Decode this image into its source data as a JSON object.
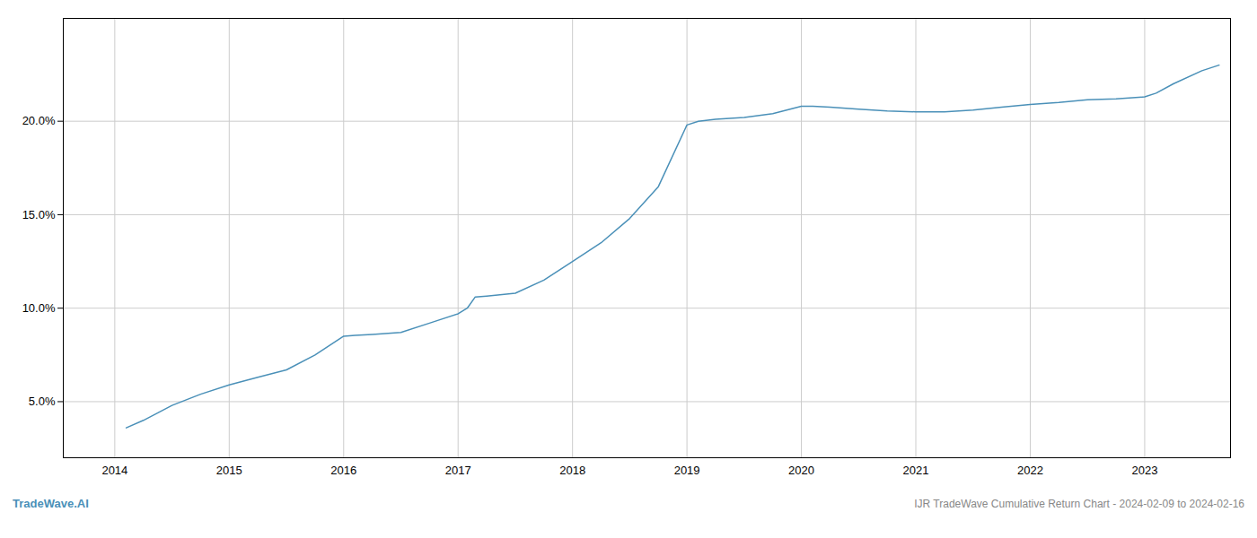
{
  "chart_data": {
    "type": "line",
    "title": "IJR TradeWave Cumulative Return Chart - 2024-02-09 to 2024-02-16",
    "annotations": [
      "TradeWave.AI"
    ],
    "color": "#4a90b8",
    "grid": true,
    "xlim": [
      2013.55,
      2023.75
    ],
    "xticks": [
      2014,
      2015,
      2016,
      2017,
      2018,
      2019,
      2020,
      2021,
      2022,
      2023
    ],
    "ylim": [
      2.0,
      25.5
    ],
    "yticks": [
      {
        "value": 5.0,
        "label": "5.0%"
      },
      {
        "value": 10.0,
        "label": "10.0%"
      },
      {
        "value": 15.0,
        "label": "15.0%"
      },
      {
        "value": 20.0,
        "label": "20.0%"
      }
    ],
    "x": [
      2014.1,
      2014.25,
      2014.5,
      2014.75,
      2015.0,
      2015.25,
      2015.5,
      2015.75,
      2016.0,
      2016.1,
      2016.25,
      2016.5,
      2016.75,
      2017.0,
      2017.08,
      2017.15,
      2017.25,
      2017.5,
      2017.75,
      2018.0,
      2018.25,
      2018.5,
      2018.75,
      2019.0,
      2019.1,
      2019.25,
      2019.5,
      2019.75,
      2020.0,
      2020.1,
      2020.25,
      2020.5,
      2020.75,
      2021.0,
      2021.25,
      2021.5,
      2021.75,
      2022.0,
      2022.25,
      2022.5,
      2022.75,
      2023.0,
      2023.1,
      2023.25,
      2023.5,
      2023.65
    ],
    "values": [
      3.6,
      4.0,
      4.8,
      5.4,
      5.9,
      6.3,
      6.7,
      7.5,
      8.5,
      8.55,
      8.6,
      8.7,
      9.2,
      9.7,
      10.0,
      10.6,
      10.65,
      10.8,
      11.5,
      12.5,
      13.5,
      14.8,
      16.5,
      19.8,
      20.0,
      20.1,
      20.2,
      20.4,
      20.8,
      20.8,
      20.75,
      20.65,
      20.55,
      20.5,
      20.5,
      20.6,
      20.75,
      20.9,
      21.0,
      21.15,
      21.2,
      21.3,
      21.5,
      22.0,
      22.7,
      23.0
    ]
  }
}
